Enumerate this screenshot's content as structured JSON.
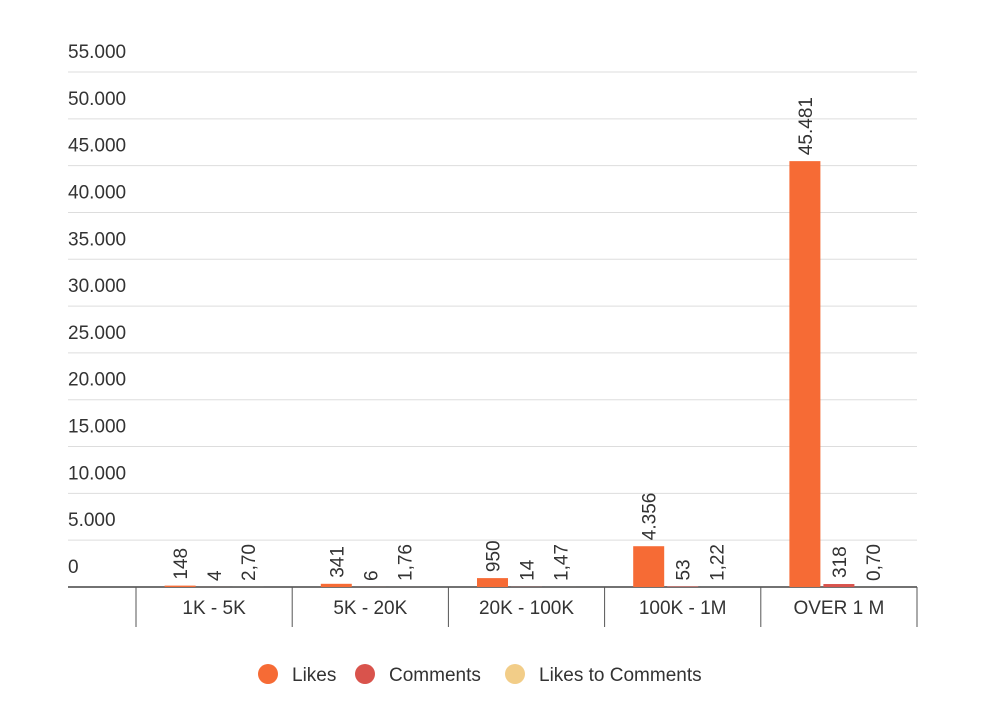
{
  "chart_data": {
    "type": "bar",
    "categories": [
      "1K - 5K",
      "5K - 20K",
      "20K - 100K",
      "100K - 1M",
      "OVER 1 M"
    ],
    "series": [
      {
        "name": "Likes",
        "color": "#f66b35",
        "values": [
          148,
          341,
          950,
          4356,
          45481
        ],
        "value_labels": [
          "148",
          "341",
          "950",
          "4.356",
          "45.481"
        ]
      },
      {
        "name": "Comments",
        "color": "#d9534c",
        "values": [
          4,
          6,
          14,
          53,
          318
        ]
      },
      {
        "name": "Likes to Comments",
        "color": "#f2cd88",
        "values": [
          2.7,
          1.76,
          1.47,
          1.22,
          0.7
        ],
        "value_labels": [
          "2,70",
          "1,76",
          "1,47",
          "1,22",
          "0,70"
        ]
      }
    ],
    "ylim": [
      0,
      55000
    ],
    "yticks": [
      0,
      {
        "value": 5000,
        "label": "5.000"
      },
      {
        "value": 10000,
        "label": "10.000"
      },
      {
        "value": 15000,
        "label": "15.000"
      },
      {
        "value": 20000,
        "label": "20.000"
      },
      {
        "value": 25000,
        "label": "25.000"
      },
      {
        "value": 30000,
        "label": "30.000"
      },
      {
        "value": 35000,
        "label": "35.000"
      },
      {
        "value": 40000,
        "label": "40.000"
      },
      {
        "value": 45000,
        "label": "45.000"
      },
      {
        "value": 50000,
        "label": "50.000"
      },
      {
        "value": 55000,
        "label": "55.000"
      }
    ],
    "grid": true,
    "legend": "bottom"
  }
}
